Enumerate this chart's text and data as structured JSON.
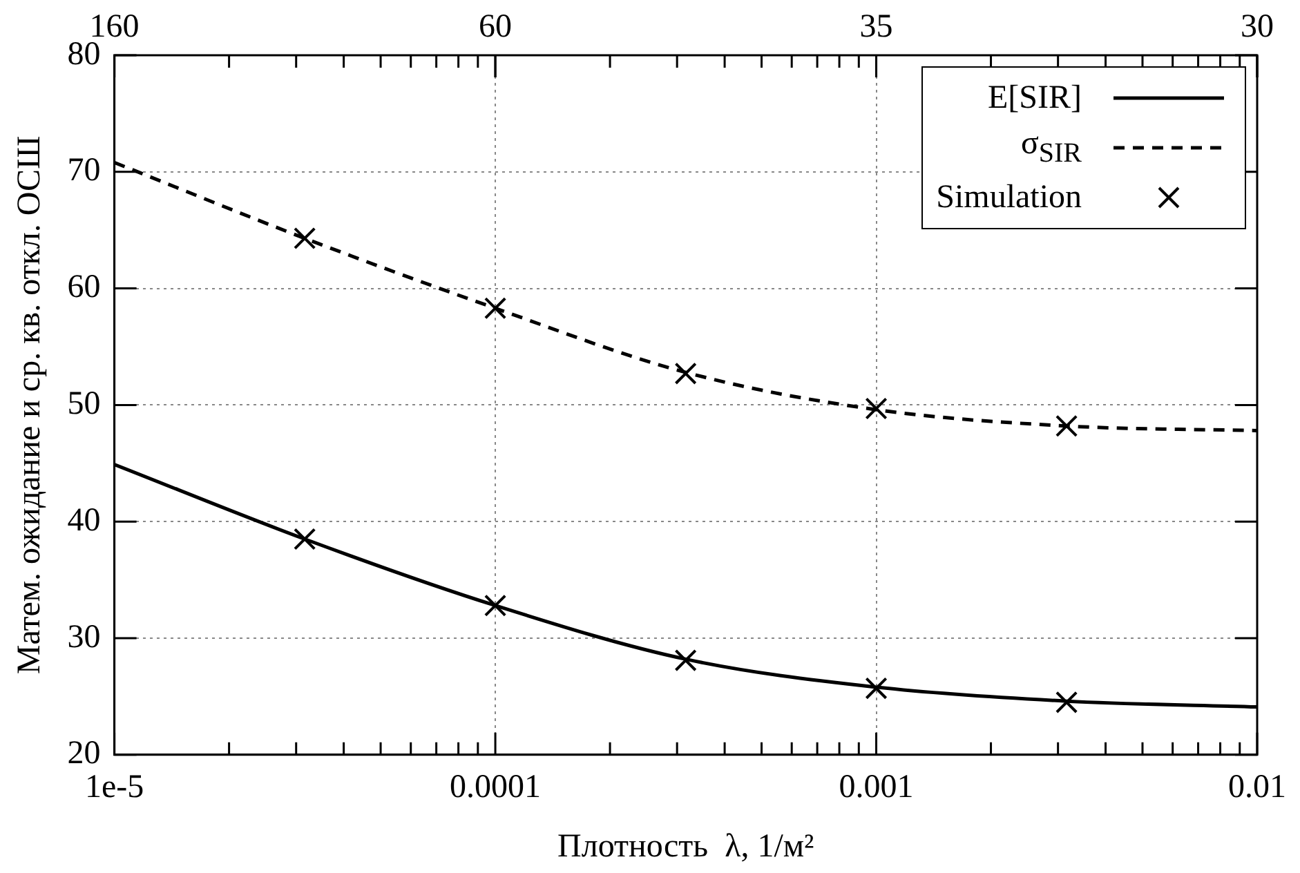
{
  "chart_data": {
    "type": "line",
    "xlabel": "Плотность  λ, 1/м²",
    "ylabel": "Матем. ожидание и ср. кв. откл. ОСШ",
    "log": "x",
    "xlim": [
      1e-05,
      0.01
    ],
    "ylim": [
      20,
      80
    ],
    "xticks": [
      {
        "value": 1e-05,
        "label": "1e-5"
      },
      {
        "value": 2e-05,
        "label": null
      },
      {
        "value": 3e-05,
        "label": null
      },
      {
        "value": 4e-05,
        "label": null
      },
      {
        "value": 5e-05,
        "label": null
      },
      {
        "value": 6e-05,
        "label": null
      },
      {
        "value": 7e-05,
        "label": null
      },
      {
        "value": 8e-05,
        "label": null
      },
      {
        "value": 9e-05,
        "label": null
      },
      0.0001,
      {
        "value": 0.0002,
        "label": null
      },
      {
        "value": 0.0003,
        "label": null
      },
      {
        "value": 0.0004,
        "label": null
      },
      {
        "value": 0.0005,
        "label": null
      },
      {
        "value": 0.0006,
        "label": null
      },
      {
        "value": 0.0007,
        "label": null
      },
      {
        "value": 0.0008,
        "label": null
      },
      {
        "value": 0.0009,
        "label": null
      },
      0.001,
      {
        "value": 0.002,
        "label": null
      },
      {
        "value": 0.003,
        "label": null
      },
      {
        "value": 0.004,
        "label": null
      },
      {
        "value": 0.005,
        "label": null
      },
      {
        "value": 0.006,
        "label": null
      },
      {
        "value": 0.007,
        "label": null
      },
      {
        "value": 0.008,
        "label": null
      },
      {
        "value": 0.009,
        "label": null
      },
      0.01
    ],
    "annotations": [
      "160",
      "60",
      "35",
      "30"
    ],
    "yticks": [
      20,
      30,
      40,
      50,
      60,
      70,
      80
    ],
    "grid": true,
    "legend": "top right",
    "series": [
      {
        "name": "E[SIR]",
        "color": "#000000",
        "line_style": "solid",
        "marker": "none",
        "x": [
          1e-05,
          3.16e-05,
          0.0001,
          0.000316,
          0.001,
          0.00316,
          0.01
        ],
        "values": [
          44.9,
          38.5,
          32.8,
          28.2,
          25.8,
          24.6,
          24.1
        ]
      },
      {
        "name": "σ$_{SIR}$",
        "color": "#000000",
        "line_style": "dashed",
        "marker": "none",
        "x": [
          1e-05,
          3.16e-05,
          0.0001,
          0.000316,
          0.001,
          0.00316,
          0.01
        ],
        "values": [
          70.8,
          64.3,
          58.3,
          52.8,
          49.6,
          48.2,
          47.8
        ]
      },
      {
        "name": "Simulation",
        "type": "scatter",
        "color": "#000000",
        "marker": "cross",
        "x": [
          3.16e-05,
          0.0001,
          0.000316,
          0.001,
          0.00316,
          3.16e-05,
          0.0001,
          0.000316,
          0.001,
          0.00316
        ],
        "values": [
          38.5,
          32.8,
          28.1,
          25.7,
          24.5,
          64.3,
          58.3,
          52.7,
          49.7,
          48.2
        ]
      }
    ]
  }
}
